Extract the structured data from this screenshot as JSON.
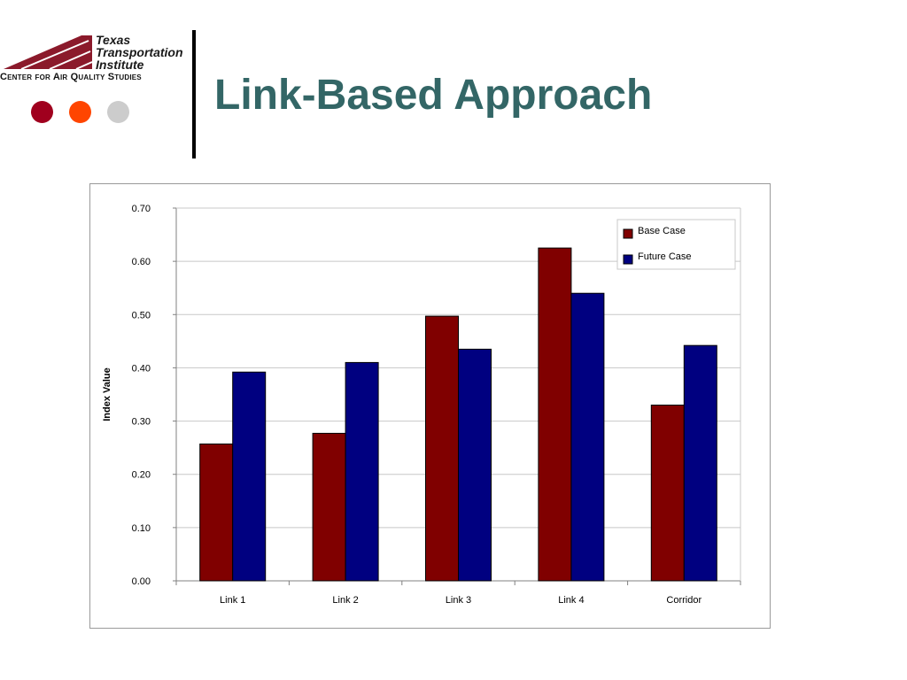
{
  "header": {
    "logo_line1": "Texas",
    "logo_line2": "Transportation",
    "logo_line3": "Institute",
    "logo_subtitle": "Center for Air Quality Studies",
    "logo_color": "#8b1a2b",
    "dot_colors": [
      "#a0001e",
      "#ff4500",
      "#cccccc"
    ]
  },
  "title": "Link-Based Approach",
  "title_color": "#336666",
  "chart_data": {
    "type": "bar",
    "title": "",
    "xlabel": "",
    "ylabel": "Index Value",
    "ylim": [
      0,
      0.7
    ],
    "yticks": [
      "0.00",
      "0.10",
      "0.20",
      "0.30",
      "0.40",
      "0.50",
      "0.60",
      "0.70"
    ],
    "grid": true,
    "legend_position": "top-right",
    "categories": [
      "Link 1",
      "Link 2",
      "Link 3",
      "Link 4",
      "Corridor"
    ],
    "series": [
      {
        "name": "Base Case",
        "color": "#800000",
        "values": [
          0.257,
          0.277,
          0.497,
          0.625,
          0.33
        ]
      },
      {
        "name": "Future Case",
        "color": "#000080",
        "values": [
          0.392,
          0.41,
          0.435,
          0.54,
          0.442
        ]
      }
    ]
  }
}
